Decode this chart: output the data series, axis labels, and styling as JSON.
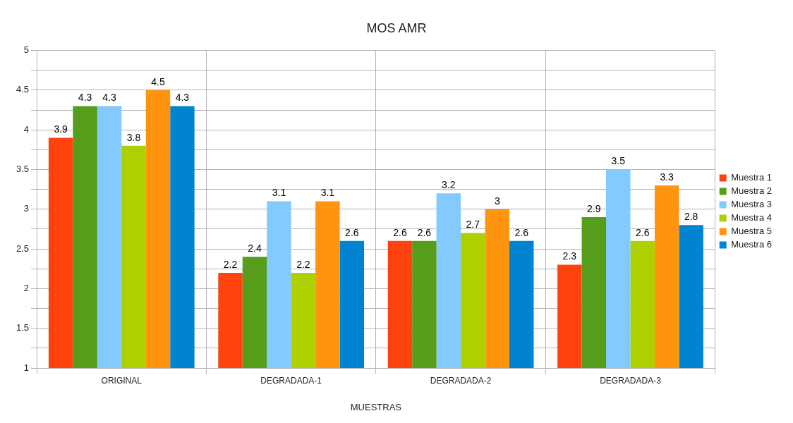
{
  "chart_data": {
    "type": "bar",
    "title": "MOS AMR",
    "xlabel": "MUESTRAS",
    "categories": [
      "ORIGINAL",
      "DEGRADADA-1",
      "DEGRADADA-2",
      "DEGRADADA-3"
    ],
    "series": [
      {
        "name": "Muestra 1",
        "color": "#ff420e",
        "values": [
          3.9,
          2.2,
          2.6,
          2.3
        ]
      },
      {
        "name": "Muestra 2",
        "color": "#579d1c",
        "values": [
          4.3,
          2.4,
          2.6,
          2.9
        ]
      },
      {
        "name": "Muestra 3",
        "color": "#83caff",
        "values": [
          4.3,
          3.1,
          3.2,
          3.5
        ]
      },
      {
        "name": "Muestra 4",
        "color": "#aecf00",
        "values": [
          3.8,
          2.2,
          2.7,
          2.6
        ]
      },
      {
        "name": "Muestra 5",
        "color": "#ff950e",
        "values": [
          4.5,
          3.1,
          3,
          3.3
        ]
      },
      {
        "name": "Muestra 6",
        "color": "#0084d1",
        "values": [
          4.3,
          2.6,
          2.6,
          2.8
        ]
      }
    ],
    "ylim": [
      1,
      5
    ],
    "yticks": [
      1,
      {
        "value": 1.25,
        "label": null
      },
      1.5,
      {
        "value": 1.75,
        "label": null
      },
      2,
      {
        "value": 2.25,
        "label": null
      },
      2.5,
      {
        "value": 2.75,
        "label": null
      },
      3,
      {
        "value": 3.25,
        "label": null
      },
      3.5,
      {
        "value": 3.75,
        "label": null
      },
      4,
      {
        "value": 4.25,
        "label": null
      },
      4.5,
      {
        "value": 4.75,
        "label": null
      },
      5
    ],
    "grid": true,
    "legend": "right",
    "data_labels": true
  }
}
